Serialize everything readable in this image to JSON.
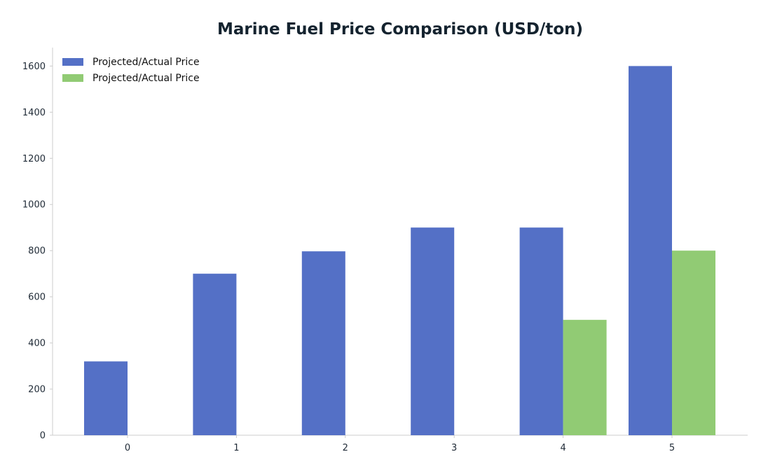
{
  "chart_data": {
    "type": "bar",
    "title": "Marine Fuel Price Comparison (USD/ton)",
    "xlabel": "",
    "ylabel": "",
    "categories": [
      "0",
      "1",
      "2",
      "3",
      "4",
      "5"
    ],
    "series": [
      {
        "name": "Projected/Actual Price",
        "color": "#5470c6",
        "values": [
          320,
          700,
          797,
          900,
          900,
          1600
        ]
      },
      {
        "name": "Projected/Actual Price",
        "color": "#91cb74",
        "values": [
          0,
          0,
          0,
          0,
          500,
          800
        ]
      }
    ],
    "yticks": [
      0,
      200,
      400,
      600,
      800,
      1000,
      1200,
      1400,
      1600
    ],
    "ylim": [
      0,
      1680
    ],
    "grid": false,
    "legend_position": "top-left"
  }
}
